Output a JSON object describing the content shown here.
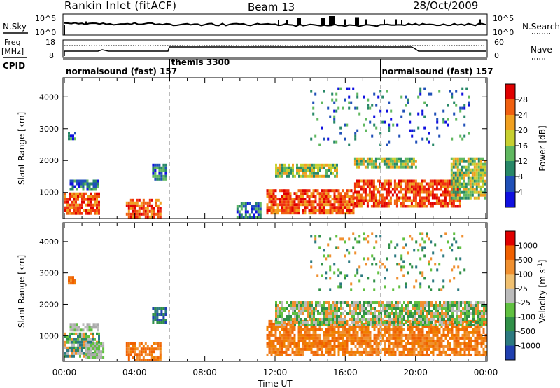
{
  "header": {
    "station": "Rankin Inlet (fitACF)",
    "beam": "Beam 13",
    "date": "28/Oct/2009"
  },
  "nsky_panel": {
    "left_label": "N.Sky",
    "right_label": "N.Search",
    "tick_top": "10^5",
    "tick_bottom": "10^0"
  },
  "freq_panel": {
    "left_label_line1": "Freq",
    "left_label_line2": "[MHz]",
    "right_label": "Nave",
    "left_ticks": [
      "18",
      "8"
    ],
    "right_ticks": [
      "60",
      "0"
    ]
  },
  "cpid": {
    "label": "CPID",
    "segments": [
      {
        "name": "normalsound (fast) 157",
        "start_hour": 0.0
      },
      {
        "name": "themis 3300",
        "start_hour": 6.0
      },
      {
        "name": "normalsound (fast) 157",
        "start_hour": 18.0
      }
    ]
  },
  "chart_data": [
    {
      "type": "heatmap",
      "name": "power",
      "ylabel": "Slant Range [km]",
      "xlabel": "",
      "xlim": [
        0,
        24
      ],
      "ylim": [
        180,
        4600
      ],
      "yticks": [
        "1000",
        "2000",
        "3000",
        "4000"
      ],
      "colorbar_label": "Power [dB]",
      "colorbar_ticks": [
        "4",
        "8",
        "12",
        "16",
        "20",
        "24",
        "28"
      ],
      "colorbar_colors": [
        "#1010e0",
        "#2050b8",
        "#288868",
        "#60b860",
        "#c8d030",
        "#f0a020",
        "#f06010",
        "#e00000"
      ],
      "regions": [
        {
          "t0": 0.0,
          "t1": 2.0,
          "r0": 300,
          "r1": 1000,
          "level": "high"
        },
        {
          "t0": 0.3,
          "t1": 1.9,
          "r0": 1100,
          "r1": 1400,
          "level": "low"
        },
        {
          "t0": 0.2,
          "t1": 0.6,
          "r0": 2650,
          "r1": 2900,
          "level": "low"
        },
        {
          "t0": 3.5,
          "t1": 5.5,
          "r0": 250,
          "r1": 800,
          "level": "high"
        },
        {
          "t0": 5.0,
          "t1": 5.8,
          "r0": 1450,
          "r1": 1900,
          "level": "low"
        },
        {
          "t0": 9.8,
          "t1": 11.2,
          "r0": 250,
          "r1": 700,
          "level": "low"
        },
        {
          "t0": 11.5,
          "t1": 16.5,
          "r0": 350,
          "r1": 1100,
          "level": "high"
        },
        {
          "t0": 16.5,
          "t1": 22.5,
          "r0": 600,
          "r1": 1400,
          "level": "high"
        },
        {
          "t0": 22.0,
          "t1": 24.0,
          "r0": 800,
          "r1": 2100,
          "level": "mid"
        },
        {
          "t0": 12.0,
          "t1": 15.5,
          "r0": 1500,
          "r1": 1900,
          "level": "mid"
        },
        {
          "t0": 16.5,
          "t1": 20.0,
          "r0": 1800,
          "r1": 2100,
          "level": "mid"
        },
        {
          "t0": 14.0,
          "t1": 23.0,
          "r0": 2500,
          "r1": 4300,
          "level": "sparse"
        }
      ]
    },
    {
      "type": "heatmap",
      "name": "velocity",
      "ylabel": "Slant Range [km]",
      "xlabel": "Time UT",
      "xlim": [
        0,
        24
      ],
      "ylim": [
        180,
        4600
      ],
      "xticks": [
        "00:00",
        "04:00",
        "08:00",
        "12:00",
        "16:00",
        "20:00",
        "00:00"
      ],
      "yticks": [
        "1000",
        "2000",
        "3000",
        "4000"
      ],
      "colorbar_label": "Velocity [m s^-1]",
      "colorbar_ticks": [
        "1000",
        "500",
        "100",
        "25",
        "-25",
        "-100",
        "-500",
        "-1000"
      ],
      "colorbar_colors": [
        "#2040b0",
        "#2c7a80",
        "#309048",
        "#60c040",
        "#bbbbbb",
        "#f0c070",
        "#f09030",
        "#f06000",
        "#e00000"
      ],
      "regions": [
        {
          "t0": 0.0,
          "t1": 2.0,
          "r0": 300,
          "r1": 1100,
          "level": "mixed"
        },
        {
          "t0": 1.2,
          "t1": 2.2,
          "r0": 300,
          "r1": 800,
          "level": "gray"
        },
        {
          "t0": 0.3,
          "t1": 1.9,
          "r0": 1150,
          "r1": 1400,
          "level": "gray"
        },
        {
          "t0": 0.2,
          "t1": 0.6,
          "r0": 2650,
          "r1": 2900,
          "level": "orange"
        },
        {
          "t0": 3.5,
          "t1": 5.5,
          "r0": 250,
          "r1": 800,
          "level": "orange"
        },
        {
          "t0": 5.0,
          "t1": 5.8,
          "r0": 1450,
          "r1": 1900,
          "level": "blue"
        },
        {
          "t0": 11.5,
          "t1": 24.0,
          "r0": 350,
          "r1": 1500,
          "level": "orange"
        },
        {
          "t0": 12.0,
          "t1": 24.0,
          "r0": 1300,
          "r1": 2100,
          "level": "green"
        },
        {
          "t0": 14.0,
          "t1": 23.0,
          "r0": 2500,
          "r1": 4300,
          "level": "sparse"
        }
      ]
    }
  ]
}
